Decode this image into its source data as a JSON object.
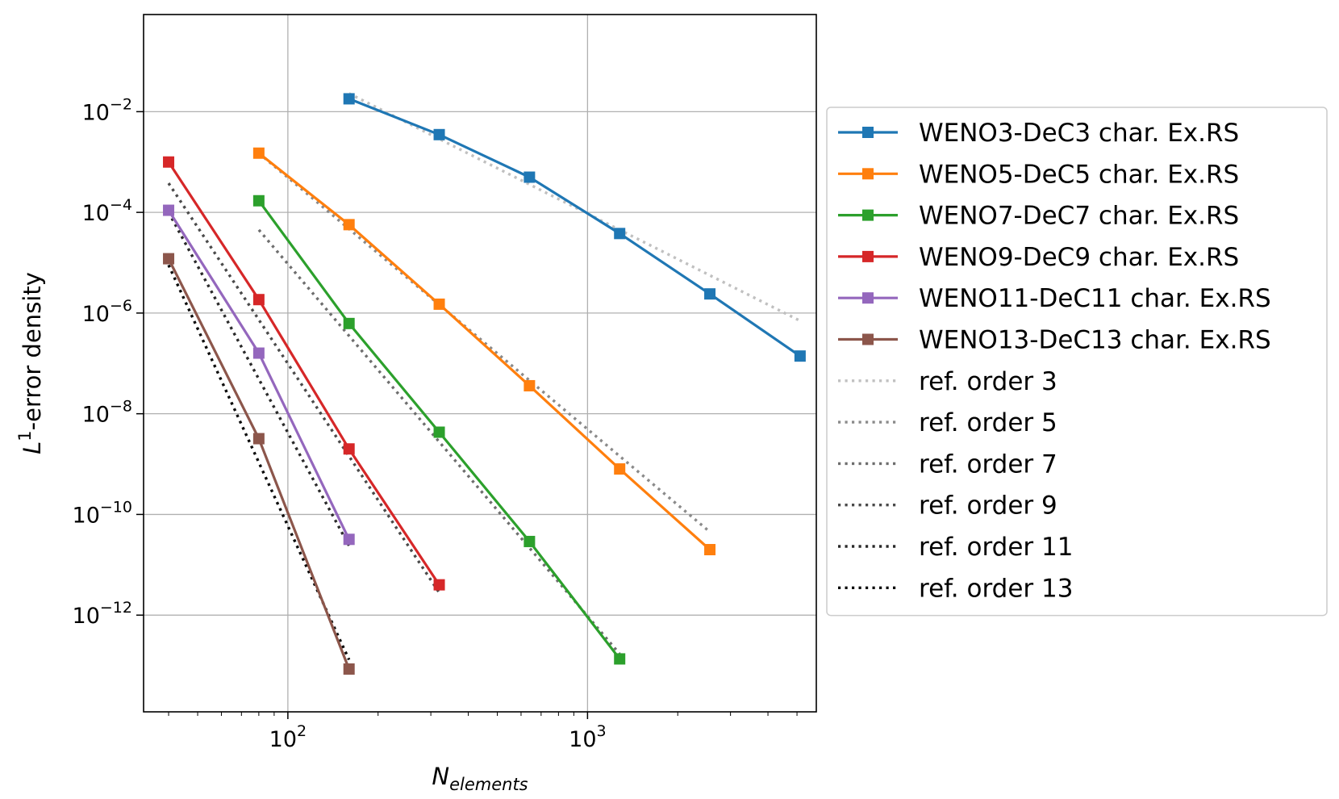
{
  "chart_data": {
    "type": "line",
    "xscale": "log",
    "yscale": "log",
    "xlim": [
      33,
      5800
    ],
    "ylim": [
      1.2e-14,
      0.85
    ],
    "grid": true,
    "legend_position": "outside right",
    "xlabel": {
      "main": "N",
      "sub": "elements"
    },
    "ylabel": {
      "pre": "L",
      "sup": "1",
      "post": "-error density"
    },
    "x_ticks": [
      {
        "value": 100,
        "base": "10",
        "exp": "2"
      },
      {
        "value": 1000,
        "base": "10",
        "exp": "3"
      }
    ],
    "y_ticks": [
      {
        "value": 0.01,
        "base": "10",
        "exp": "−2"
      },
      {
        "value": 0.0001,
        "base": "10",
        "exp": "−4"
      },
      {
        "value": 1e-06,
        "base": "10",
        "exp": "−6"
      },
      {
        "value": 1e-08,
        "base": "10",
        "exp": "−8"
      },
      {
        "value": 1e-10,
        "base": "10",
        "exp": "−10"
      },
      {
        "value": 1e-12,
        "base": "10",
        "exp": "−12"
      }
    ],
    "series": [
      {
        "name": "WENO3-DeC3 char. Ex.RS",
        "color": "#1f77b4",
        "style": "solid-square",
        "x": [
          160,
          320,
          640,
          1280,
          2560,
          5120
        ],
        "y": [
          0.018,
          0.0035,
          0.0005,
          3.8e-05,
          2.4e-06,
          1.4e-07
        ]
      },
      {
        "name": "WENO5-DeC5 char. Ex.RS",
        "color": "#ff7f0e",
        "style": "solid-square",
        "x": [
          80,
          160,
          320,
          640,
          1280,
          2560
        ],
        "y": [
          0.0015,
          5.7e-05,
          1.5e-06,
          3.6e-08,
          8e-10,
          2e-11
        ]
      },
      {
        "name": "WENO7-DeC7 char. Ex.RS",
        "color": "#2ca02c",
        "style": "solid-square",
        "x": [
          80,
          160,
          320,
          640,
          1280
        ],
        "y": [
          0.00017,
          6.2e-07,
          4.3e-09,
          2.9e-11,
          1.35e-13
        ]
      },
      {
        "name": "WENO9-DeC9 char. Ex.RS",
        "color": "#d62728",
        "style": "solid-square",
        "x": [
          40,
          80,
          160,
          320
        ],
        "y": [
          0.001,
          1.85e-06,
          2e-09,
          4e-12
        ]
      },
      {
        "name": "WENO11-DeC11 char. Ex.RS",
        "color": "#9467bd",
        "style": "solid-square",
        "x": [
          40,
          80,
          160
        ],
        "y": [
          0.00011,
          1.6e-07,
          3.2e-11
        ]
      },
      {
        "name": "WENO13-DeC13 char. Ex.RS",
        "color": "#8c564b",
        "style": "solid-square",
        "x": [
          40,
          80,
          160
        ],
        "y": [
          1.2e-05,
          3.2e-09,
          8.5e-14
        ]
      },
      {
        "name": "ref. order 3",
        "color": "#c0c0c0",
        "style": "dotted",
        "x": [
          160,
          5120
        ],
        "y": [
          0.023,
          7e-07
        ]
      },
      {
        "name": "ref. order 5",
        "color": "#8a8a8a",
        "style": "dotted",
        "x": [
          80,
          2560
        ],
        "y": [
          0.0015,
          4.5e-11
        ]
      },
      {
        "name": "ref. order 7",
        "color": "#6e6e6e",
        "style": "dotted",
        "x": [
          80,
          1280
        ],
        "y": [
          4.5e-05,
          1.7e-13
        ]
      },
      {
        "name": "ref. order 9",
        "color": "#4a4a4a",
        "style": "dotted",
        "x": [
          40,
          320
        ],
        "y": [
          0.00038,
          2.8e-12
        ]
      },
      {
        "name": "ref. order 11",
        "color": "#2a2a2a",
        "style": "dotted",
        "x": [
          40,
          160
        ],
        "y": [
          0.0001,
          2.4e-11
        ]
      },
      {
        "name": "ref. order 13",
        "color": "#0a0a0a",
        "style": "dotted",
        "x": [
          40,
          160
        ],
        "y": [
          9e-06,
          1.3e-13
        ]
      }
    ]
  }
}
